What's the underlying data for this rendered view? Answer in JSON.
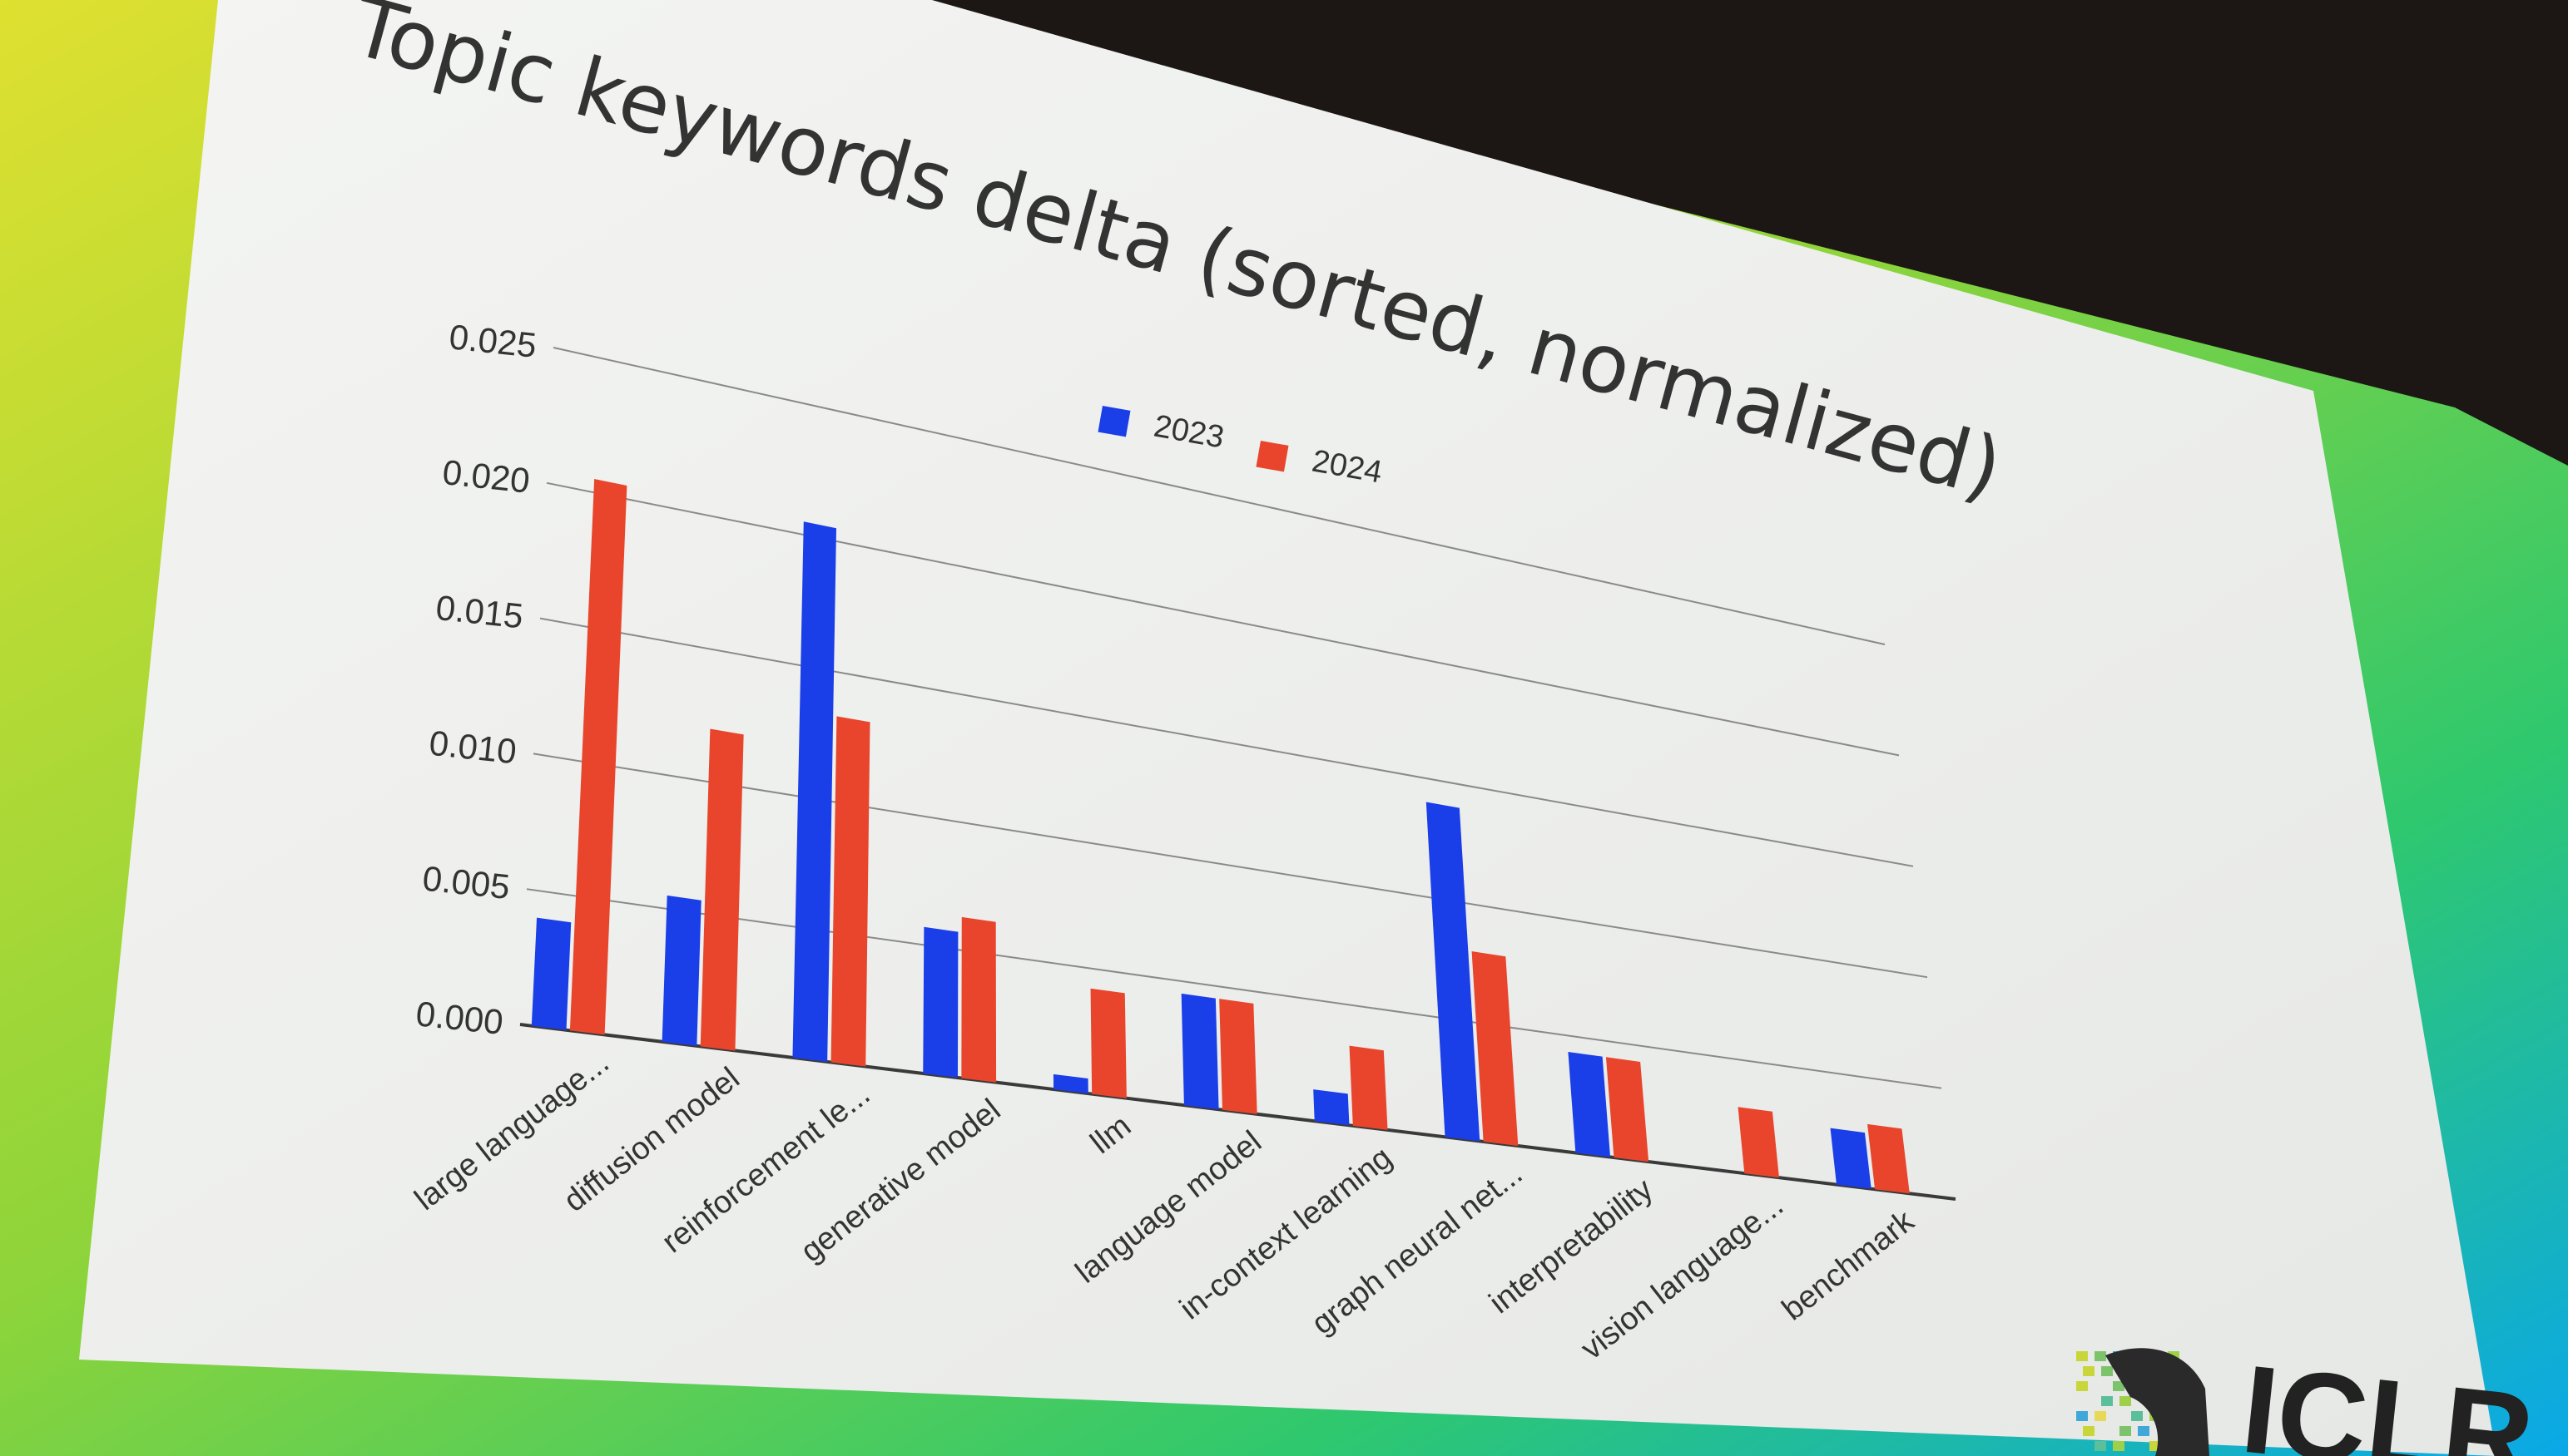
{
  "slide": {
    "title": "Topic keywords delta (sorted, normalized)",
    "logo_text": "ICLR"
  },
  "chart_data": {
    "type": "bar",
    "title": "Topic keywords delta (sorted, normalized)",
    "xlabel": "",
    "ylabel": "",
    "ylim": [
      0,
      0.025
    ],
    "yticks": [
      "0.000",
      "0.005",
      "0.010",
      "0.015",
      "0.020",
      "0.025"
    ],
    "grid": true,
    "legend_position": "top-center",
    "categories": [
      "large language...",
      "diffusion model",
      "reinforcement le...",
      "generative model",
      "llm",
      "language model",
      "in-context learning",
      "graph neural net...",
      "interpretability",
      "vision language...",
      "benchmark"
    ],
    "series": [
      {
        "name": "2023",
        "color": "#1a3ee8",
        "values": [
          0.004,
          0.0055,
          0.0205,
          0.0057,
          0.0006,
          0.0045,
          0.0013,
          0.014,
          0.0043,
          0.0,
          0.0025
        ]
      },
      {
        "name": "2024",
        "color": "#e8452c",
        "values": [
          0.0205,
          0.012,
          0.0133,
          0.0063,
          0.0042,
          0.0045,
          0.0033,
          0.008,
          0.0043,
          0.0029,
          0.0029
        ]
      }
    ]
  }
}
